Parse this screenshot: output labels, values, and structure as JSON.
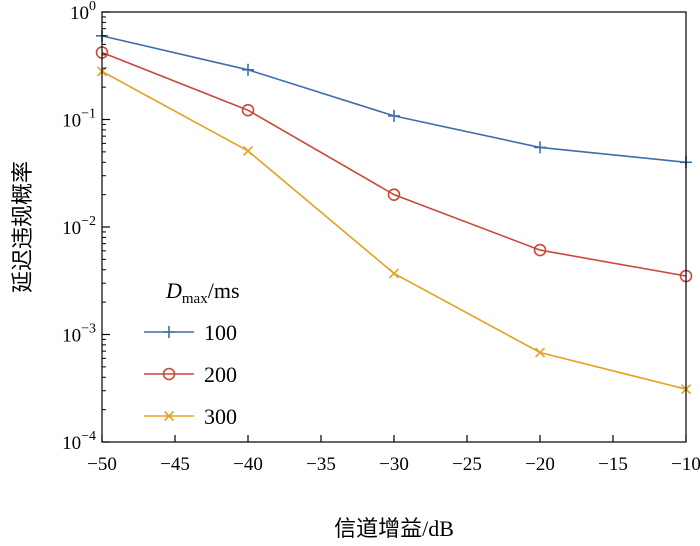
{
  "chart_data": {
    "type": "line",
    "title": "",
    "xlabel": "信道增益/dB",
    "ylabel": "延迟违规概率",
    "xlim": [
      -50,
      -10
    ],
    "ylim": [
      0.0001,
      1
    ],
    "yscale": "log",
    "grid": false,
    "legend_placement": "lower-left",
    "x": [
      -50,
      -40,
      -30,
      -20,
      -10
    ],
    "x_ticks": [
      "−50",
      "−45",
      "−40",
      "−35",
      "−30",
      "−25",
      "−20",
      "−15",
      "−10"
    ],
    "x_tick_values": [
      -50,
      -45,
      -40,
      -35,
      -30,
      -25,
      -20,
      -15,
      -10
    ],
    "y_ticks": [
      {
        "base": "10",
        "exp": "0"
      },
      {
        "base": "10",
        "exp": "−1"
      },
      {
        "base": "10",
        "exp": "−2"
      },
      {
        "base": "10",
        "exp": "−3"
      },
      {
        "base": "10",
        "exp": "−4"
      }
    ],
    "y_tick_values": [
      1,
      0.1,
      0.01,
      0.001,
      0.0001
    ],
    "legend_title": {
      "main": "D",
      "sub": "max",
      "unit": "/ms"
    },
    "series": [
      {
        "name": "100",
        "color": "#3e6ea8",
        "marker": "plus",
        "values": [
          0.6,
          0.29,
          0.108,
          0.055,
          0.04
        ]
      },
      {
        "name": "200",
        "color": "#c9493a",
        "marker": "circle",
        "values": [
          0.42,
          0.122,
          0.02,
          0.0061,
          0.0035
        ]
      },
      {
        "name": "300",
        "color": "#e3a226",
        "marker": "cross",
        "values": [
          0.28,
          0.051,
          0.0037,
          0.00068,
          0.00031
        ]
      }
    ]
  }
}
